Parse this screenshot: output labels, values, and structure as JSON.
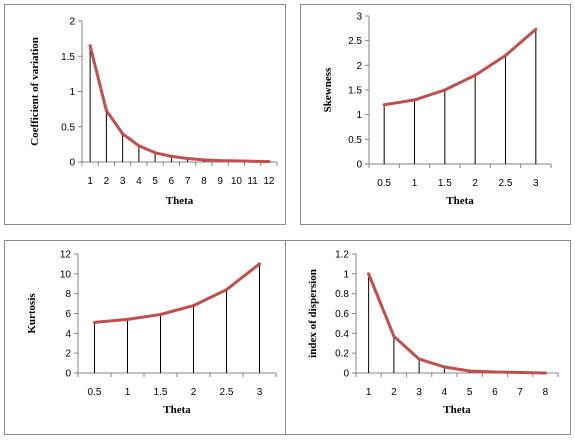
{
  "chart_data": [
    {
      "type": "line",
      "x": [
        1,
        2,
        3,
        4,
        5,
        6,
        7,
        8,
        9,
        10,
        11,
        12
      ],
      "values": [
        1.65,
        0.73,
        0.4,
        0.23,
        0.13,
        0.08,
        0.05,
        0.03,
        0.02,
        0.015,
        0.01,
        0.005
      ],
      "xticks": [
        "1",
        "2",
        "3",
        "4",
        "5",
        "6",
        "7",
        "8",
        "9",
        "10",
        "11",
        "12"
      ],
      "yticks": [
        "0",
        "0.5",
        "1",
        "1.5",
        "2"
      ],
      "ylim": [
        0,
        2
      ],
      "xlabel": "Theta",
      "ylabel": "Coefficient of variation",
      "drop_lines": true,
      "line_color": "#c0504d"
    },
    {
      "type": "line",
      "x": [
        0.5,
        1,
        1.5,
        2,
        2.5,
        3
      ],
      "values": [
        1.2,
        1.3,
        1.5,
        1.8,
        2.2,
        2.73
      ],
      "xticks": [
        "0.5",
        "1",
        "1.5",
        "2",
        "2.5",
        "3"
      ],
      "yticks": [
        "0",
        "0.5",
        "1",
        "1.5",
        "2",
        "2.5",
        "3"
      ],
      "ylim": [
        0,
        3
      ],
      "xlabel": "Theta",
      "ylabel": "Skewness",
      "drop_lines": true,
      "line_color": "#c0504d"
    },
    {
      "type": "line",
      "x": [
        0.5,
        1,
        1.5,
        2,
        2.5,
        3
      ],
      "values": [
        5.1,
        5.4,
        5.9,
        6.8,
        8.4,
        11.0
      ],
      "xticks": [
        "0.5",
        "1",
        "1.5",
        "2",
        "2.5",
        "3"
      ],
      "yticks": [
        "0",
        "2",
        "4",
        "6",
        "8",
        "10",
        "12"
      ],
      "ylim": [
        0,
        12
      ],
      "xlabel": "Theta",
      "ylabel": "Kurtosis",
      "drop_lines": true,
      "line_color": "#c0504d"
    },
    {
      "type": "line",
      "x": [
        1,
        2,
        3,
        4,
        5,
        6,
        7,
        8
      ],
      "values": [
        1.0,
        0.37,
        0.14,
        0.06,
        0.02,
        0.01,
        0.005,
        0.0
      ],
      "xticks": [
        "1",
        "2",
        "3",
        "4",
        "5",
        "6",
        "7",
        "8"
      ],
      "yticks": [
        "0",
        "0.2",
        "0.4",
        "0.6",
        "0.8",
        "1",
        "1.2"
      ],
      "ylim": [
        0,
        1.2
      ],
      "xlabel": "Theta",
      "ylabel": "index of dispersion",
      "drop_lines": true,
      "line_color": "#c0504d"
    }
  ]
}
